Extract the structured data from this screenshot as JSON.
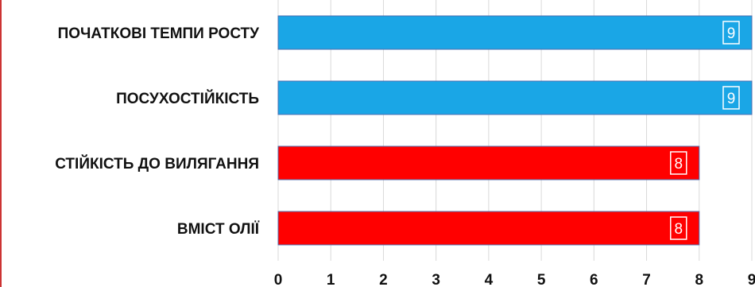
{
  "chart_data": {
    "type": "bar",
    "orientation": "horizontal",
    "categories": [
      "ПОЧАТКОВІ ТЕМПИ РОСТУ",
      "ПОСУХОСТІЙКІСТЬ",
      "СТІЙКІСТЬ ДО ВИЛЯГАННЯ",
      "ВМІСТ ОЛІЇ"
    ],
    "values": [
      9,
      9,
      8,
      8
    ],
    "bar_colors": [
      "#1aa6e6",
      "#1aa6e6",
      "#ff0000",
      "#ff0000"
    ],
    "xlim": [
      0,
      9
    ],
    "xticks": [
      0,
      1,
      2,
      3,
      4,
      5,
      6,
      7,
      8,
      9
    ],
    "grid": true,
    "data_labels": true,
    "title": "",
    "xlabel": "",
    "ylabel": ""
  }
}
